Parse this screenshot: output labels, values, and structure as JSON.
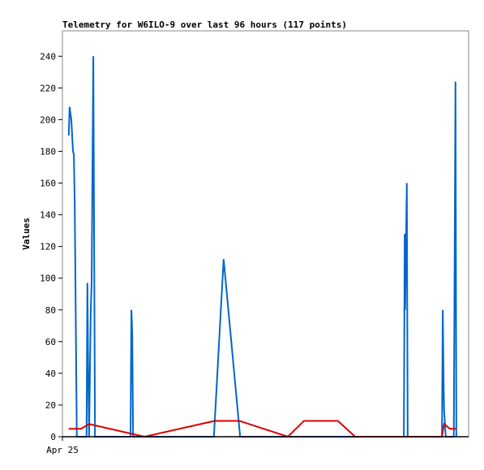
{
  "chart_data": {
    "type": "line",
    "title": "Telemetry for W6ILO-9 over last 96 hours (117 points)",
    "y_label": "Values",
    "xlim": [
      0,
      96
    ],
    "xticks": [
      {
        "value": 0,
        "label": "Apr 25"
      }
    ],
    "ylim": [
      0,
      256
    ],
    "yticks": [
      0,
      20,
      40,
      60,
      80,
      100,
      120,
      140,
      160,
      180,
      200,
      220,
      240
    ],
    "series": [
      {
        "color": "#0066cc",
        "x": [
          1.5,
          1.7,
          2.1,
          2.5,
          2.7,
          2.9,
          3.1,
          3.3,
          3.4,
          5.7,
          5.9,
          6.1,
          6.3,
          6.7,
          6.9,
          7.3,
          7.5,
          7.7,
          16.1,
          16.3,
          16.5,
          16.7,
          35.8,
          38.1,
          42.0,
          80.7,
          80.9,
          81.0,
          81.4,
          81.6,
          89.7,
          89.9,
          90.1,
          90.2,
          90.6,
          92.5,
          92.7,
          92.9,
          93.1
        ],
        "values": [
          190,
          208,
          200,
          180,
          178,
          148,
          90,
          30,
          0,
          0,
          97,
          40,
          0,
          80,
          97,
          240,
          120,
          0,
          0,
          80,
          65,
          0,
          0,
          112,
          0,
          0,
          128,
          80,
          160,
          0,
          0,
          80,
          32,
          17,
          0,
          0,
          112,
          224,
          0
        ]
      },
      {
        "color": "#dd0000",
        "x": [
          1.5,
          4.4,
          6.3,
          19.4,
          36.0,
          41.8,
          53.3,
          57.1,
          65.1,
          69.2,
          89.7,
          90.2,
          91.6,
          93.1
        ],
        "values": [
          5,
          5,
          8,
          0,
          10,
          10,
          0,
          10,
          10,
          0,
          0,
          8,
          5,
          5
        ]
      }
    ]
  }
}
